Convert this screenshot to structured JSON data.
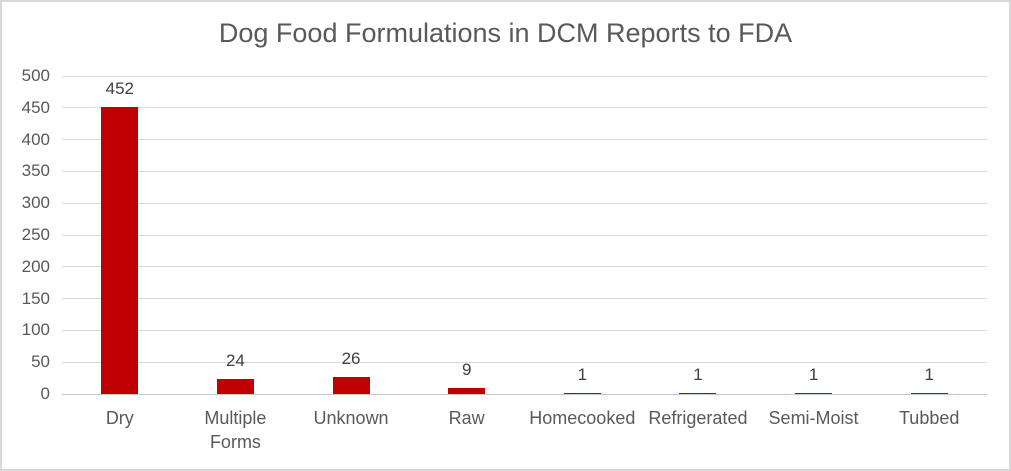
{
  "chart_data": {
    "type": "bar",
    "title": "Dog Food Formulations in DCM Reports to FDA",
    "categories": [
      "Dry",
      "Multiple Forms",
      "Unknown",
      "Raw",
      "Homecooked",
      "Refrigerated",
      "Semi-Moist",
      "Tubbed"
    ],
    "values": [
      452,
      24,
      26,
      9,
      1,
      1,
      1,
      1
    ],
    "data_labels": [
      "452",
      "24",
      "26",
      "9",
      "1",
      "1",
      "1",
      "1"
    ],
    "xlabel": "",
    "ylabel": "",
    "ylim": [
      0,
      500
    ],
    "ytick_step": 50,
    "ytick_labels": [
      "0",
      "50",
      "100",
      "150",
      "200",
      "250",
      "300",
      "350",
      "400",
      "450",
      "500"
    ],
    "grid": true,
    "legend": "none",
    "colors": {
      "bar": "#C00000",
      "gridline": "#D9D9D9",
      "axis_line": "#C9C9C9",
      "title_text": "#595959",
      "tick_text": "#595959",
      "data_label_text": "#404040",
      "background": "#FFFFFF",
      "frame_border": "#D8D8D8"
    }
  }
}
